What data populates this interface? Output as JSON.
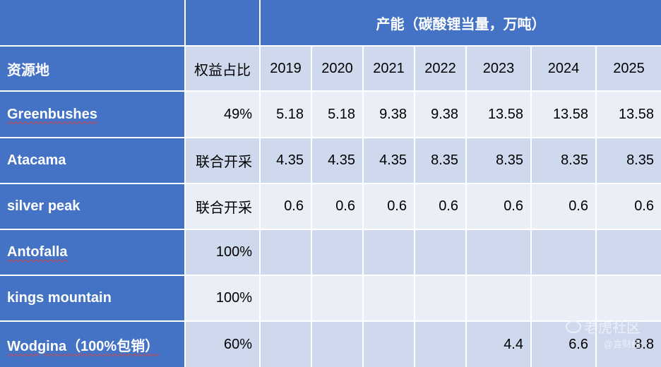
{
  "table": {
    "header": {
      "capacity_label": "产能（碳酸锂当量，万吨）",
      "resource_label": "资源地",
      "equity_label": "权益占比",
      "years": [
        "2019",
        "2020",
        "2021",
        "2022",
        "2023",
        "2024",
        "2025"
      ]
    },
    "rows": [
      {
        "name": "Greenbushes",
        "equity": "49%",
        "values": [
          "5.18",
          "5.18",
          "9.38",
          "9.38",
          "13.58",
          "13.58",
          "13.58"
        ]
      },
      {
        "name": "Atacama",
        "equity": "联合开采",
        "values": [
          "4.35",
          "4.35",
          "4.35",
          "8.35",
          "8.35",
          "8.35",
          "8.35"
        ]
      },
      {
        "name": "silver peak",
        "equity": "联合开采",
        "values": [
          "0.6",
          "0.6",
          "0.6",
          "0.6",
          "0.6",
          "0.6",
          "0.6"
        ]
      },
      {
        "name": "Antofalla",
        "equity": "100%",
        "values": [
          "",
          "",
          "",
          "",
          "",
          "",
          ""
        ]
      },
      {
        "name": "kings mountain",
        "equity": "100%",
        "values": [
          "",
          "",
          "",
          "",
          "",
          "",
          ""
        ]
      },
      {
        "name": "Wodgina（100%包销）",
        "equity": "60%",
        "values": [
          "",
          "",
          "",
          "",
          "4.4",
          "6.6",
          "8.8"
        ]
      }
    ]
  },
  "watermark": {
    "line1": "老虎社区",
    "line2": "@言财经"
  }
}
